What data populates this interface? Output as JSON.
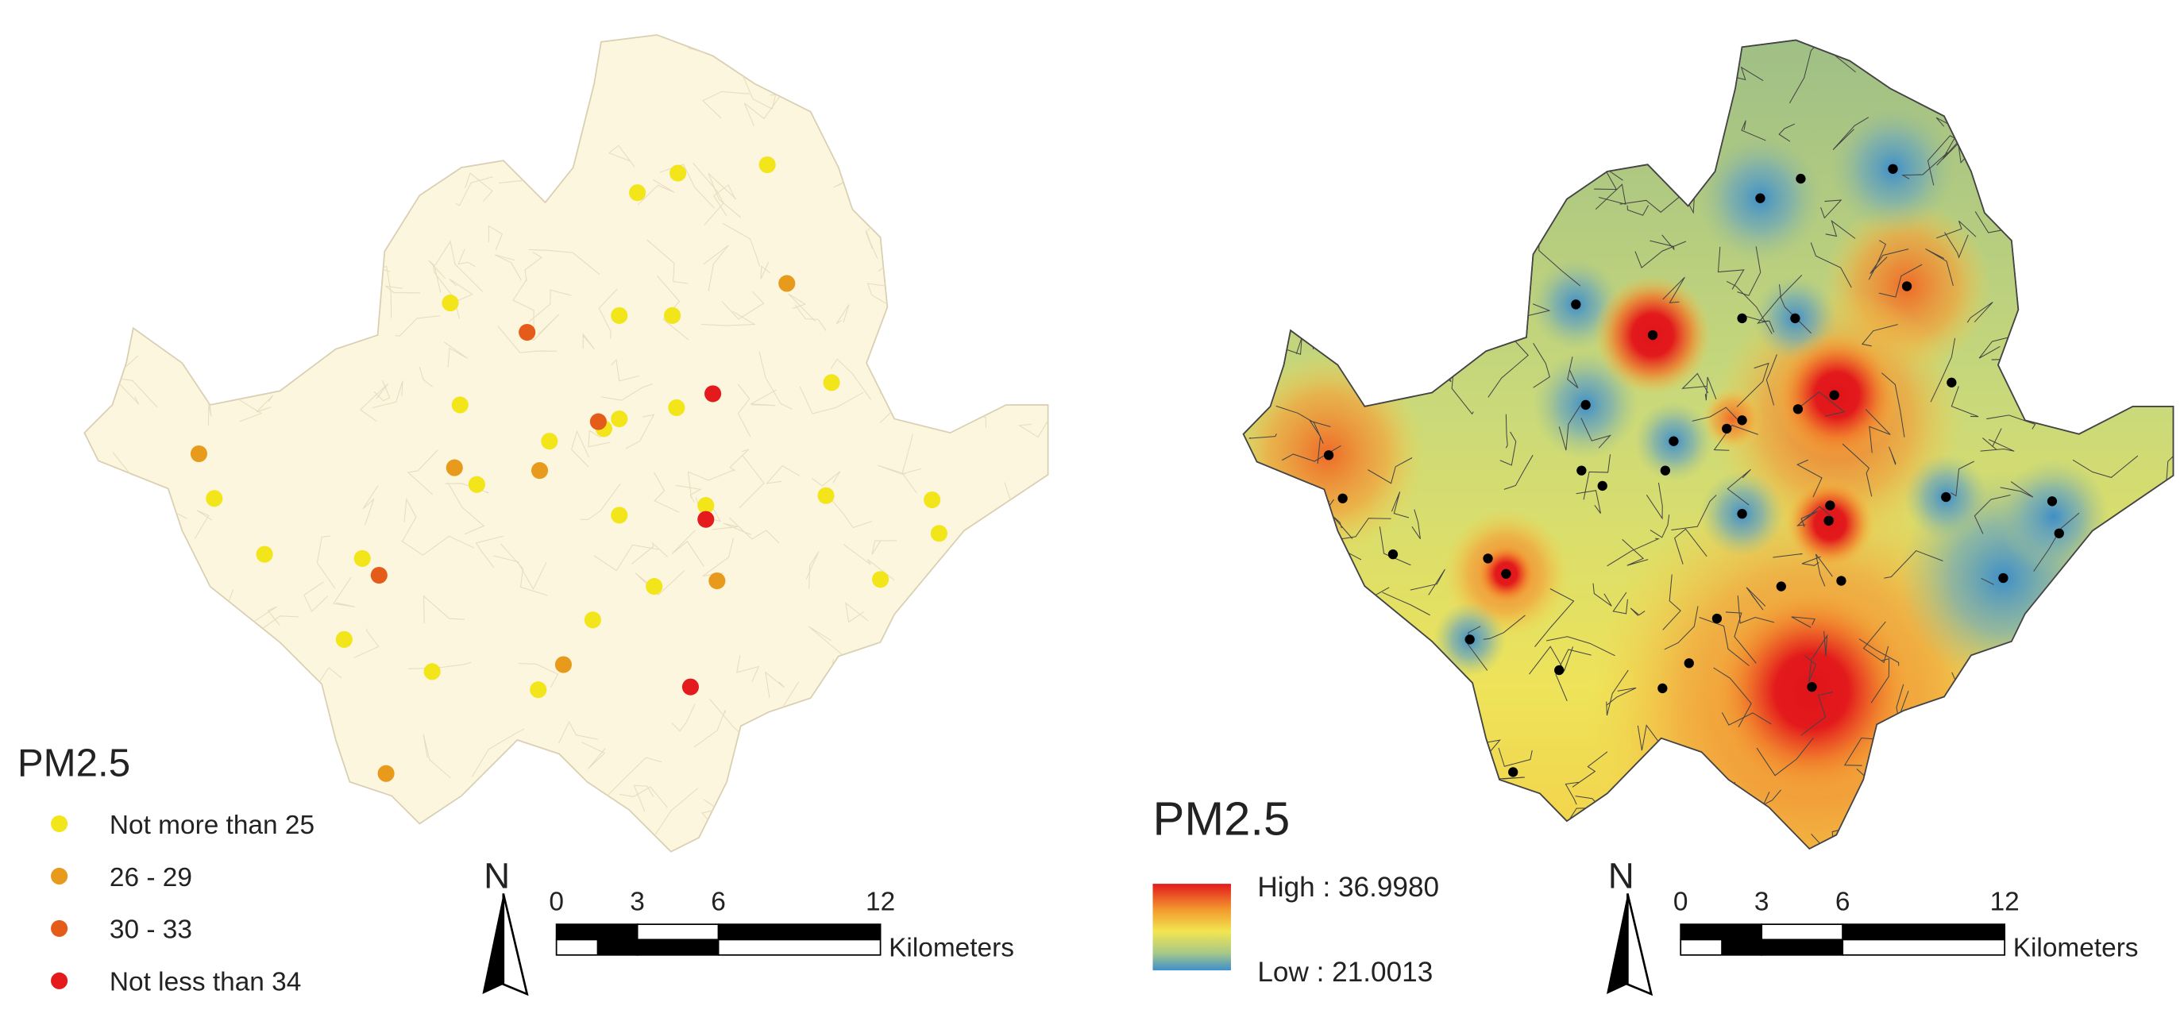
{
  "left_map": {
    "legend": {
      "title": "PM2.5",
      "items": [
        {
          "label": "Not more than 25",
          "color": "#f2e51a"
        },
        {
          "label": "26 - 29",
          "color": "#e89a1c"
        },
        {
          "label": "30 - 33",
          "color": "#e55c1a"
        },
        {
          "label": "Not less than 34",
          "color": "#e41a1c"
        }
      ]
    },
    "north": "N",
    "scale_bar": {
      "ticks": [
        "0",
        "3",
        "6",
        "12"
      ],
      "unit": "Kilometers"
    }
  },
  "right_map": {
    "legend": {
      "title": "PM2.5",
      "high": "High : 36.9980",
      "low": "Low : 21.0013"
    },
    "north": "N",
    "scale_bar": {
      "ticks": [
        "0",
        "3",
        "6",
        "12"
      ],
      "unit": "Kilometers"
    }
  }
}
